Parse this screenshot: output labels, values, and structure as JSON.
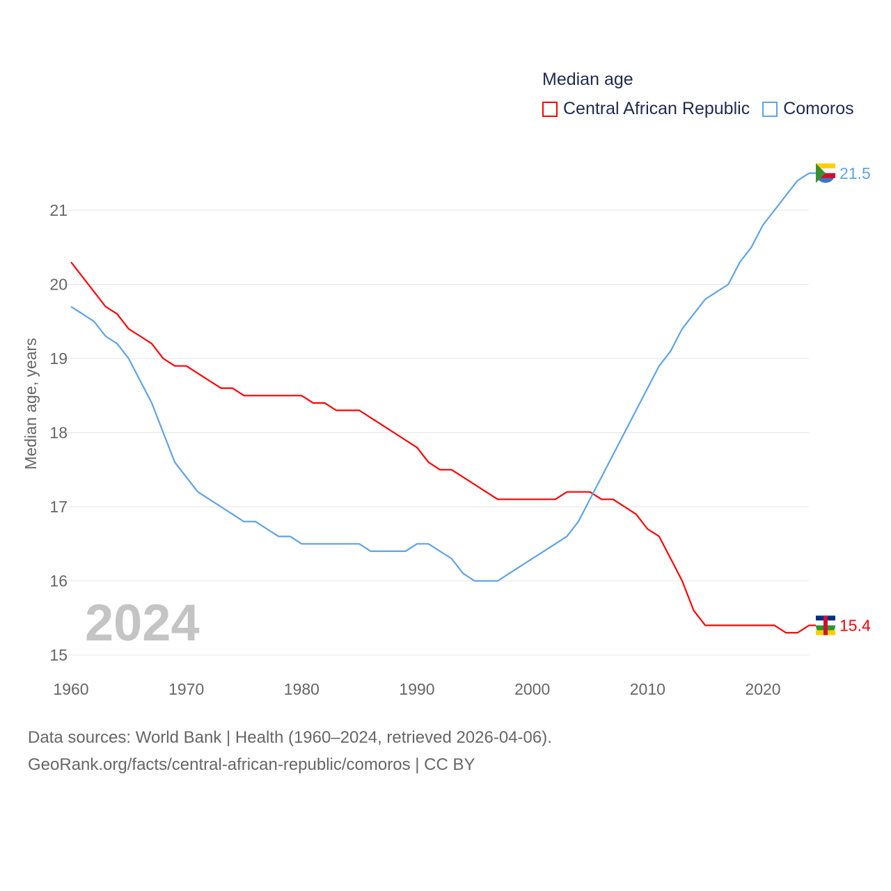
{
  "chart_data": {
    "type": "line",
    "title": "Median age",
    "xlabel": "",
    "ylabel": "Median age, years",
    "xlim": [
      1960,
      2024
    ],
    "ylim": [
      15,
      21.5
    ],
    "xticks": [
      "1960",
      "1970",
      "1980",
      "1990",
      "2000",
      "2010",
      "2020"
    ],
    "yticks": [
      "15",
      "16",
      "17",
      "18",
      "19",
      "20",
      "21"
    ],
    "grid": true,
    "legend_position": "top-right",
    "year_watermark": "2024",
    "x": [
      1960,
      1961,
      1962,
      1963,
      1964,
      1965,
      1966,
      1967,
      1968,
      1969,
      1970,
      1971,
      1972,
      1973,
      1974,
      1975,
      1976,
      1977,
      1978,
      1979,
      1980,
      1981,
      1982,
      1983,
      1984,
      1985,
      1986,
      1987,
      1988,
      1989,
      1990,
      1991,
      1992,
      1993,
      1994,
      1995,
      1996,
      1997,
      1998,
      1999,
      2000,
      2001,
      2002,
      2003,
      2004,
      2005,
      2006,
      2007,
      2008,
      2009,
      2010,
      2011,
      2012,
      2013,
      2014,
      2015,
      2016,
      2017,
      2018,
      2019,
      2020,
      2021,
      2022,
      2023,
      2024
    ],
    "series": [
      {
        "name": "Central African Republic",
        "color": "#ff0000",
        "end_label": "15.4",
        "values": [
          20.3,
          20.1,
          19.9,
          19.7,
          19.6,
          19.4,
          19.3,
          19.2,
          19.0,
          18.9,
          18.9,
          18.8,
          18.7,
          18.6,
          18.6,
          18.5,
          18.5,
          18.5,
          18.5,
          18.5,
          18.5,
          18.4,
          18.4,
          18.3,
          18.3,
          18.3,
          18.2,
          18.1,
          18.0,
          17.9,
          17.8,
          17.6,
          17.5,
          17.5,
          17.4,
          17.3,
          17.2,
          17.1,
          17.1,
          17.1,
          17.1,
          17.1,
          17.1,
          17.2,
          17.2,
          17.2,
          17.1,
          17.1,
          17.0,
          16.9,
          16.7,
          16.6,
          16.3,
          16.0,
          15.6,
          15.4,
          15.4,
          15.4,
          15.4,
          15.4,
          15.4,
          15.4,
          15.3,
          15.3,
          15.4
        ]
      },
      {
        "name": "Comoros",
        "color": "#5ba4ec",
        "end_label": "21.5",
        "values": [
          19.7,
          19.6,
          19.5,
          19.3,
          19.2,
          19.0,
          18.7,
          18.4,
          18.0,
          17.6,
          17.4,
          17.2,
          17.1,
          17.0,
          16.9,
          16.8,
          16.8,
          16.7,
          16.6,
          16.6,
          16.5,
          16.5,
          16.5,
          16.5,
          16.5,
          16.5,
          16.4,
          16.4,
          16.4,
          16.4,
          16.5,
          16.5,
          16.4,
          16.3,
          16.1,
          16.0,
          16.0,
          16.0,
          16.1,
          16.2,
          16.3,
          16.4,
          16.5,
          16.6,
          16.8,
          17.1,
          17.4,
          17.7,
          18.0,
          18.3,
          18.6,
          18.9,
          19.1,
          19.4,
          19.6,
          19.8,
          19.9,
          20.0,
          20.3,
          20.5,
          20.8,
          21.0,
          21.2,
          21.4,
          21.5
        ]
      }
    ]
  },
  "footer": {
    "line1": "Data sources: World Bank | Health (1960–2024, retrieved 2026-04-06).",
    "line2": "GeoRank.org/facts/central-african-republic/comoros | CC BY"
  }
}
